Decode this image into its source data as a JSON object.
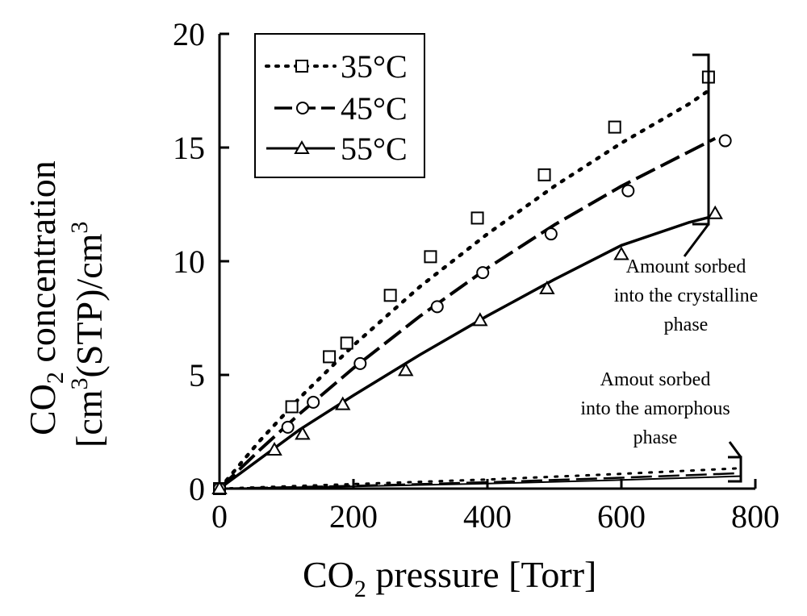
{
  "chart_data": {
    "type": "scatter",
    "title": "",
    "xlabel": {
      "main": "CO",
      "sub": "2",
      "rest": " pressure [Torr]"
    },
    "ylabel": {
      "line1": {
        "main": "CO",
        "sub": "2",
        "rest": " concentration"
      },
      "line2": {
        "open": "[cm",
        "sup": "3",
        "mid": "(STP)/cm",
        "sup2": "3"
      }
    },
    "xlim": [
      0,
      800
    ],
    "ylim": [
      0,
      20
    ],
    "xticks": [
      "0",
      "200",
      "400",
      "600",
      "800"
    ],
    "yticks": [
      "0",
      "5",
      "10",
      "15",
      "20"
    ],
    "grid": false,
    "legend_position": "top-left",
    "series": [
      {
        "name": "35°C",
        "marker": "square",
        "line_style": "dotted",
        "points": [
          [
            0,
            0
          ],
          [
            108,
            3.6
          ],
          [
            164,
            5.8
          ],
          [
            190,
            6.4
          ],
          [
            255,
            8.5
          ],
          [
            315,
            10.2
          ],
          [
            385,
            11.9
          ],
          [
            485,
            13.8
          ],
          [
            590,
            15.9
          ],
          [
            730,
            18.1
          ]
        ],
        "curve": [
          [
            0,
            0
          ],
          [
            60,
            2.1
          ],
          [
            120,
            4.0
          ],
          [
            200,
            6.3
          ],
          [
            300,
            8.9
          ],
          [
            400,
            11.2
          ],
          [
            500,
            13.3
          ],
          [
            600,
            15.2
          ],
          [
            700,
            16.9
          ],
          [
            735,
            17.6
          ]
        ]
      },
      {
        "name": "45°C",
        "marker": "circle",
        "line_style": "dashed",
        "points": [
          [
            0,
            0
          ],
          [
            102,
            2.7
          ],
          [
            140,
            3.8
          ],
          [
            210,
            5.5
          ],
          [
            325,
            8.0
          ],
          [
            393,
            9.5
          ],
          [
            495,
            11.2
          ],
          [
            610,
            13.1
          ],
          [
            755,
            15.3
          ]
        ],
        "curve": [
          [
            0,
            0
          ],
          [
            60,
            1.7
          ],
          [
            120,
            3.3
          ],
          [
            200,
            5.3
          ],
          [
            300,
            7.6
          ],
          [
            400,
            9.7
          ],
          [
            500,
            11.6
          ],
          [
            600,
            13.3
          ],
          [
            700,
            14.8
          ],
          [
            740,
            15.4
          ]
        ]
      },
      {
        "name": "55°C",
        "marker": "triangle",
        "line_style": "solid",
        "points": [
          [
            0,
            0
          ],
          [
            82,
            1.7
          ],
          [
            124,
            2.4
          ],
          [
            184,
            3.7
          ],
          [
            278,
            5.2
          ],
          [
            389,
            7.4
          ],
          [
            489,
            8.8
          ],
          [
            600,
            10.3
          ],
          [
            740,
            12.1
          ]
        ],
        "curve": [
          [
            0,
            0
          ],
          [
            60,
            1.3
          ],
          [
            120,
            2.6
          ],
          [
            200,
            4.1
          ],
          [
            300,
            5.9
          ],
          [
            400,
            7.6
          ],
          [
            500,
            9.2
          ],
          [
            600,
            10.7
          ],
          [
            700,
            11.7
          ],
          [
            740,
            12.0
          ]
        ]
      }
    ],
    "amorphous_lines": [
      {
        "series": "35°C",
        "line_style": "dotted",
        "points": [
          [
            0,
            0
          ],
          [
            200,
            0.2
          ],
          [
            400,
            0.4
          ],
          [
            600,
            0.65
          ],
          [
            780,
            0.9
          ]
        ]
      },
      {
        "series": "45°C",
        "line_style": "dashed",
        "points": [
          [
            0,
            0
          ],
          [
            200,
            0.12
          ],
          [
            400,
            0.28
          ],
          [
            600,
            0.48
          ],
          [
            780,
            0.68
          ]
        ]
      },
      {
        "series": "55°C",
        "line_style": "solid",
        "points": [
          [
            0,
            0
          ],
          [
            200,
            0.1
          ],
          [
            400,
            0.22
          ],
          [
            600,
            0.38
          ],
          [
            780,
            0.55
          ]
        ]
      }
    ],
    "annotations": [
      {
        "id": "crystalline",
        "lines": [
          "Amount sorbed",
          "into the crystalline",
          "phase"
        ]
      },
      {
        "id": "amorphous",
        "lines": [
          "Amout sorbed",
          "into the amorphous",
          "phase"
        ]
      }
    ]
  }
}
